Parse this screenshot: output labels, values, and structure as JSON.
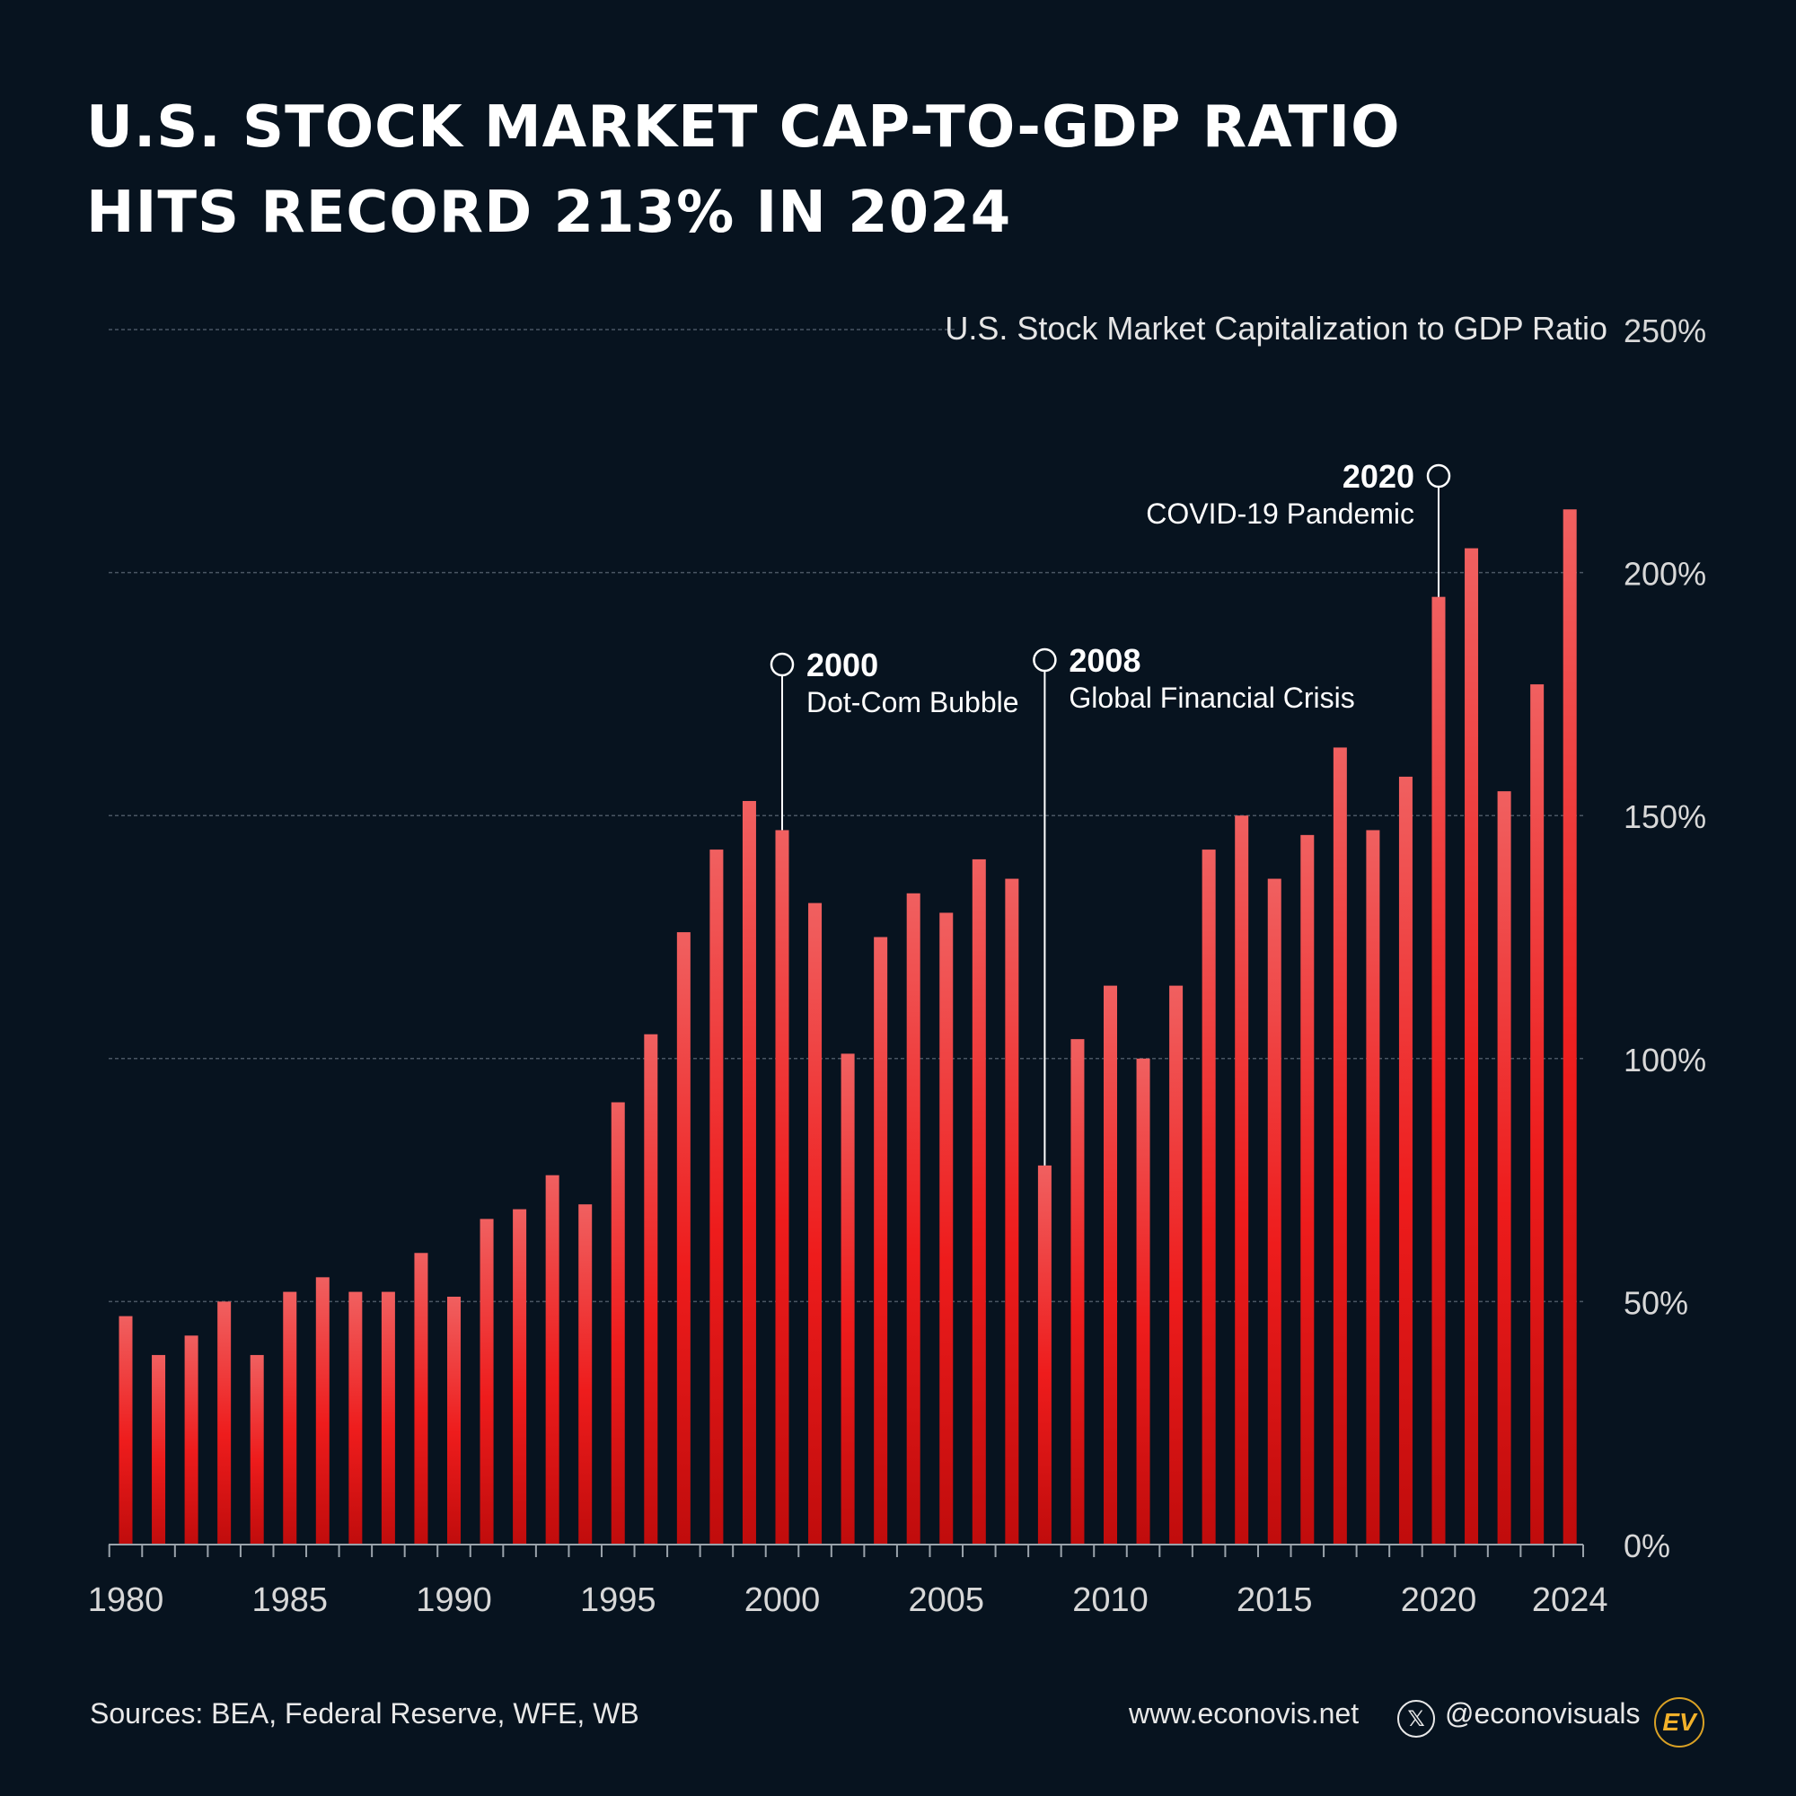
{
  "title": {
    "line1": "U.S. STOCK MARKET CAP-TO-GDP RATIO",
    "line2": "HITS RECORD 213% IN 2024"
  },
  "chart_data": {
    "type": "bar",
    "title": "U.S. Stock Market Capitalization to GDP Ratio",
    "ylim": [
      0,
      250
    ],
    "yticks": [
      0,
      50,
      100,
      150,
      200,
      250
    ],
    "ytick_labels": [
      "0%",
      "50%",
      "100%",
      "150%",
      "200%",
      "250%"
    ],
    "xtick_labels": [
      "1980",
      "1985",
      "1990",
      "1995",
      "2000",
      "2005",
      "2010",
      "2015",
      "2020",
      "2024"
    ],
    "categories": [
      1980,
      1981,
      1982,
      1983,
      1984,
      1985,
      1986,
      1987,
      1988,
      1989,
      1990,
      1991,
      1992,
      1993,
      1994,
      1995,
      1996,
      1997,
      1998,
      1999,
      2000,
      2001,
      2002,
      2003,
      2004,
      2005,
      2006,
      2007,
      2008,
      2009,
      2010,
      2011,
      2012,
      2013,
      2014,
      2015,
      2016,
      2017,
      2018,
      2019,
      2020,
      2021,
      2022,
      2023,
      2024
    ],
    "values": [
      47,
      39,
      43,
      50,
      39,
      52,
      55,
      52,
      52,
      60,
      51,
      67,
      69,
      76,
      70,
      91,
      105,
      126,
      143,
      153,
      147,
      132,
      101,
      125,
      134,
      130,
      141,
      137,
      78,
      104,
      115,
      100,
      115,
      143,
      150,
      137,
      146,
      164,
      147,
      158,
      195,
      205,
      155,
      177,
      213
    ],
    "annotations": [
      {
        "year": 2000,
        "label": "2000",
        "text": "Dot-Com Bubble"
      },
      {
        "year": 2008,
        "label": "2008",
        "text": "Global Financial Crisis"
      },
      {
        "year": 2020,
        "label": "2020",
        "text": "COVID-19 Pandemic"
      }
    ],
    "colors": {
      "bar_top": "#f06060",
      "bar_mid": "#ee1c1c",
      "bar_bottom": "#c00c0c",
      "grid": "#4a5663",
      "axis": "#9aa3ab",
      "label": "#d8d8d8"
    }
  },
  "footer": {
    "sources": "Sources: BEA, Federal Reserve, WFE, WB",
    "website": "www.econovis.net",
    "x_glyph": "𝕏",
    "handle": "@econovisuals",
    "logo": "EV"
  }
}
